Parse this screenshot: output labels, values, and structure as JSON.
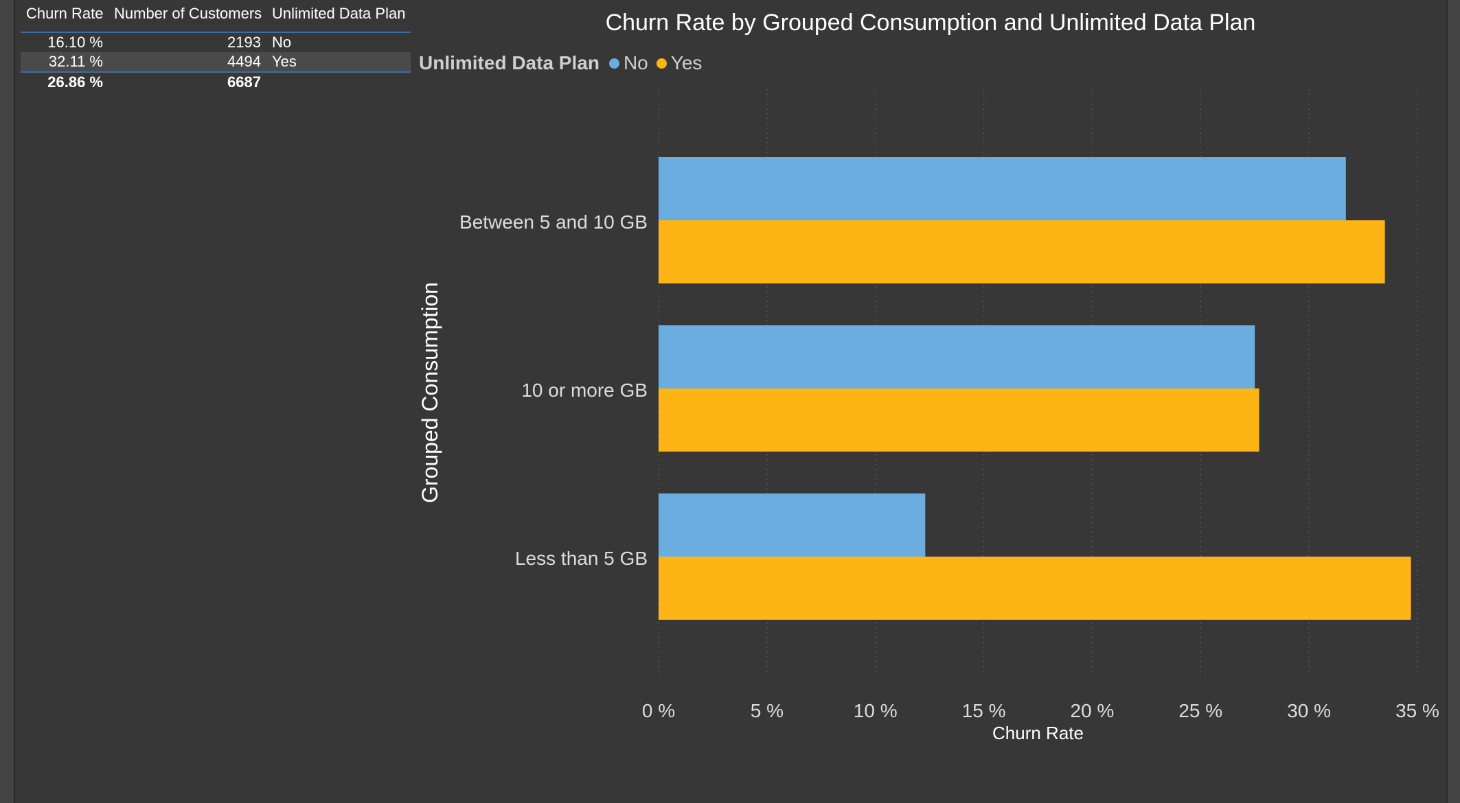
{
  "table": {
    "headers": [
      "Churn Rate",
      "Number of Customers",
      "Unlimited Data Plan"
    ],
    "rows": [
      {
        "churn_rate": "16.10 %",
        "customers": "2193",
        "plan": "No"
      },
      {
        "churn_rate": "32.11 %",
        "customers": "4494",
        "plan": "Yes"
      }
    ],
    "total": {
      "churn_rate": "26.86 %",
      "customers": "6687"
    }
  },
  "chart_data": {
    "type": "bar",
    "orientation": "horizontal",
    "title": "Churn Rate by Grouped Consumption and Unlimited Data Plan",
    "xlabel": "Churn Rate",
    "ylabel": "Grouped Consumption",
    "legend_title": "Unlimited Data Plan",
    "legend_position": "top-left",
    "categories": [
      "Between 5 and 10 GB",
      "10 or more GB",
      "Less than 5 GB"
    ],
    "series": [
      {
        "name": "No",
        "color": "#6caddf",
        "values": [
          31.7,
          27.5,
          12.3
        ]
      },
      {
        "name": "Yes",
        "color": "#fdb515",
        "values": [
          33.5,
          27.7,
          34.7
        ]
      }
    ],
    "xlim": [
      0,
      35
    ],
    "xticks": [
      0,
      5,
      10,
      15,
      20,
      25,
      30,
      35
    ],
    "xtick_labels": [
      "0 %",
      "5 %",
      "10 %",
      "15 %",
      "20 %",
      "25 %",
      "30 %",
      "35 %"
    ],
    "grid": "vertical dotted"
  }
}
